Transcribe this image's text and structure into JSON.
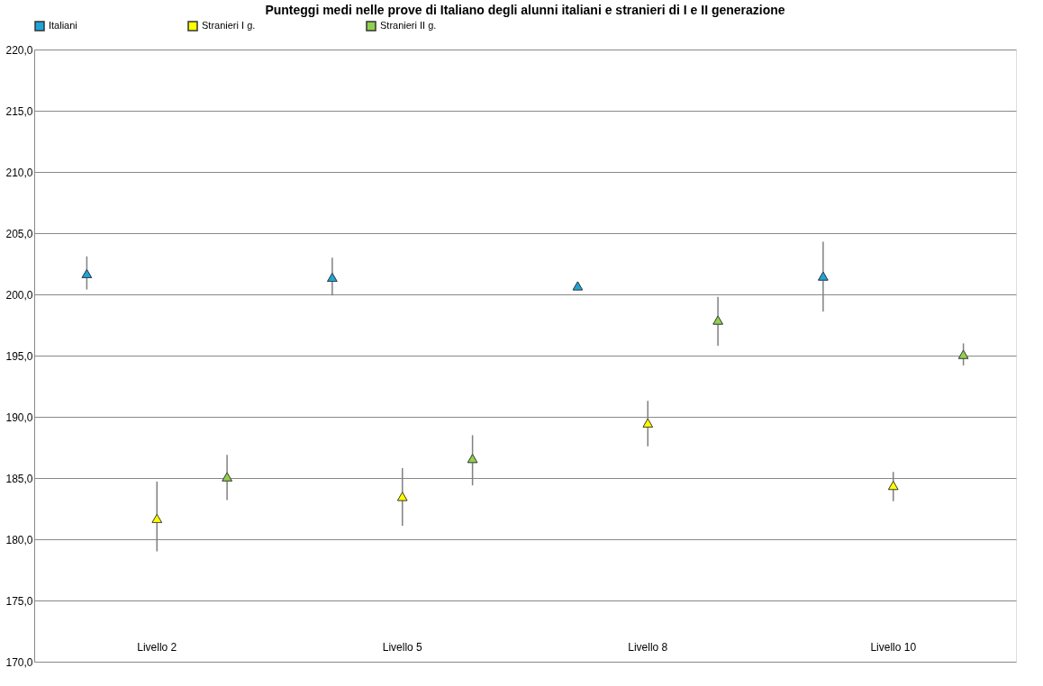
{
  "chart_data": {
    "type": "scatter",
    "title": "Punteggi medi nelle prove di Italiano degli alunni italiani e stranieri di I e II generazione",
    "categories": [
      "Livello 2",
      "Livello 5",
      "Livello 8",
      "Livello 10"
    ],
    "series": [
      {
        "name": "Italiani",
        "color": "#1fa4d8",
        "values": [
          201.7,
          201.4,
          200.7,
          201.5
        ],
        "errors": [
          [
            200.4,
            203.1
          ],
          [
            199.9,
            203.0
          ],
          null,
          [
            198.6,
            204.3
          ]
        ]
      },
      {
        "name": "Stranieri I g.",
        "color": "#ffff00",
        "values": [
          181.7,
          183.5,
          189.5,
          184.4
        ],
        "errors": [
          [
            179.0,
            184.7
          ],
          [
            181.1,
            185.8
          ],
          [
            187.6,
            191.3
          ],
          [
            183.1,
            185.5
          ]
        ]
      },
      {
        "name": "Stranieri II g.",
        "color": "#92d050",
        "values": [
          185.1,
          186.6,
          197.9,
          195.1
        ],
        "errors": [
          [
            183.2,
            186.9
          ],
          [
            184.4,
            188.5
          ],
          [
            195.8,
            199.8
          ],
          [
            194.2,
            196.0
          ]
        ]
      }
    ],
    "ylim": [
      170,
      220
    ],
    "yticks": [
      {
        "value": 170,
        "label": "170,0"
      },
      {
        "value": 175,
        "label": "175,0"
      },
      {
        "value": 180,
        "label": "180,0"
      },
      {
        "value": 185,
        "label": "185,0"
      },
      {
        "value": 190,
        "label": "190,0"
      },
      {
        "value": 195,
        "label": "195,0"
      },
      {
        "value": 200,
        "label": "200,0"
      },
      {
        "value": 205,
        "label": "205,0"
      },
      {
        "value": 210,
        "label": "210,0"
      },
      {
        "value": 215,
        "label": "215,0"
      },
      {
        "value": 220,
        "label": "220,0"
      }
    ],
    "grid": "y",
    "legend": "top",
    "marker": "triangle"
  }
}
